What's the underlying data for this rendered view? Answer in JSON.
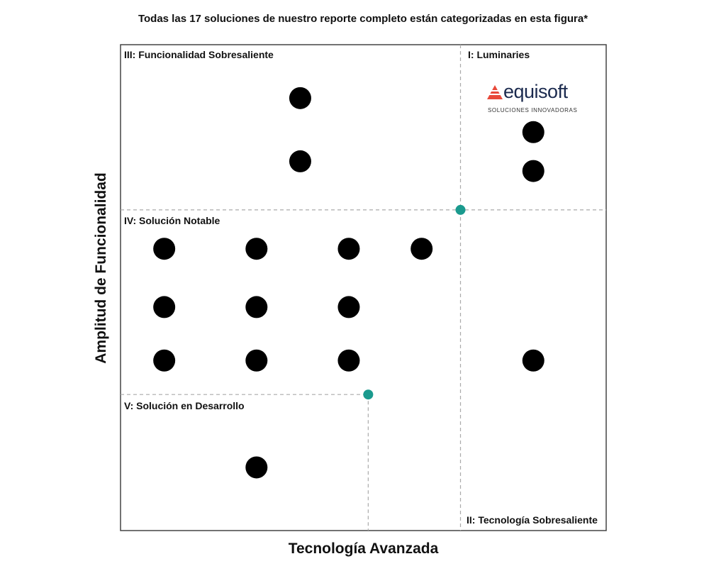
{
  "title": "Todas las 17 soluciones de nuestro reporte completo están categorizadas en esta figura*",
  "logo": {
    "brand": "equisoft",
    "tagline": "SOLUCIONES INNOVADORAS",
    "mark_icon": "triangle-stripes-icon",
    "mark_color": "#e8493a"
  },
  "colors": {
    "point": "#000000",
    "marker": "#1a9a8e",
    "frame": "#444444",
    "divider": "#aaaaaa"
  },
  "chart_data": {
    "type": "scatter",
    "title": "Todas las 17 soluciones de nuestro reporte completo están categorizadas en esta figura*",
    "xlabel": "Tecnología Avanzada",
    "ylabel": "Amplitud de Funcionalidad",
    "quadrants": [
      {
        "label": "III: Funcionalidad Sobresaliente"
      },
      {
        "label": "I: Luminaries"
      },
      {
        "label": "IV: Solución Notable"
      },
      {
        "label": "V: Solución en Desarrollo"
      },
      {
        "label": "II: Tecnología Sobresaliente"
      }
    ],
    "points": [
      {
        "x": 37,
        "y": 89
      },
      {
        "x": 37,
        "y": 76
      },
      {
        "x": 85,
        "y": 82
      },
      {
        "x": 85,
        "y": 74
      },
      {
        "x": 9,
        "y": 58
      },
      {
        "x": 28,
        "y": 58
      },
      {
        "x": 47,
        "y": 58
      },
      {
        "x": 62,
        "y": 58
      },
      {
        "x": 9,
        "y": 46
      },
      {
        "x": 28,
        "y": 46
      },
      {
        "x": 47,
        "y": 46
      },
      {
        "x": 9,
        "y": 35
      },
      {
        "x": 28,
        "y": 35
      },
      {
        "x": 47,
        "y": 35
      },
      {
        "x": 85,
        "y": 35
      },
      {
        "x": 28,
        "y": 13
      }
    ],
    "thresholds": [
      {
        "x": 70,
        "y": 66
      },
      {
        "x": 51,
        "y": 28
      }
    ]
  }
}
